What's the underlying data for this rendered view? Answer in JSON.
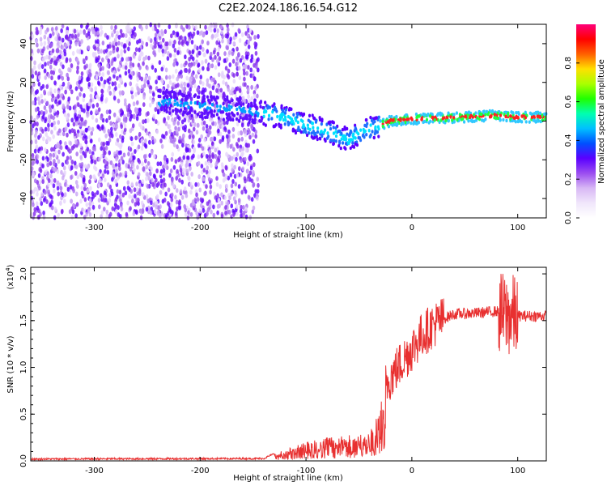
{
  "title": "C2E2.2024.186.16.54.G12",
  "colors": {
    "colorbar_stops": [
      "#ffffff",
      "#f0e6fb",
      "#d8b8f5",
      "#9b4df0",
      "#5a00ff",
      "#0050ff",
      "#00c0ff",
      "#00ffb0",
      "#20ff00",
      "#aaff00",
      "#ffe000",
      "#ff6000",
      "#ff0000",
      "#ff007a"
    ],
    "snr_line": "#e83030"
  },
  "chart_data": [
    {
      "type": "heatmap",
      "xlabel": "Height of straight line (km)",
      "ylabel": "Frequency (Hz)",
      "xlim": [
        -360,
        127
      ],
      "ylim": [
        -50,
        50
      ],
      "xticks": [
        -300,
        -200,
        -100,
        0,
        100
      ],
      "yticks": [
        -40,
        -20,
        0,
        20,
        40
      ],
      "colorbar": {
        "label": "Normalized spectral amplitude",
        "range": [
          0,
          1
        ],
        "ticks": [
          "0.0",
          "0.2",
          "0.4",
          "0.6",
          "0.8"
        ]
      },
      "ridge": {
        "x": [
          -230,
          -200,
          -150,
          -120,
          -100,
          -80,
          -60,
          -50,
          -40,
          -30,
          -20,
          0,
          20,
          50,
          80,
          100,
          127
        ],
        "y": [
          10,
          8,
          5,
          2,
          -2,
          -5,
          -10,
          -6,
          -4,
          -2,
          0,
          1,
          1.5,
          2,
          3,
          2,
          2
        ]
      },
      "noise_extent_x": [
        -360,
        -145
      ]
    },
    {
      "type": "line",
      "xlabel": "Height of straight line (km)",
      "ylabel": "SNR (10 * v/v)",
      "y_scale_label": "(x10",
      "y_scale_exp": "4",
      "y_scale_close": ")",
      "xlim": [
        -360,
        127
      ],
      "ylim": [
        0,
        2.07
      ],
      "xticks": [
        -300,
        -200,
        -100,
        0,
        100
      ],
      "yticks": [
        "0.0",
        "0.5",
        "1.0",
        "1.5",
        "2.0"
      ],
      "envelope": {
        "x": [
          -360,
          -140,
          -120,
          -100,
          -80,
          -60,
          -40,
          -30,
          -25,
          -20,
          -10,
          0,
          10,
          20,
          30,
          40,
          60,
          80,
          90,
          100,
          127
        ],
        "y": [
          0.01,
          0.015,
          0.12,
          0.2,
          0.25,
          0.28,
          0.3,
          0.6,
          0.8,
          0.9,
          1.05,
          1.2,
          1.35,
          1.45,
          1.52,
          1.57,
          1.58,
          1.6,
          1.55,
          1.55,
          1.55
        ]
      }
    }
  ]
}
